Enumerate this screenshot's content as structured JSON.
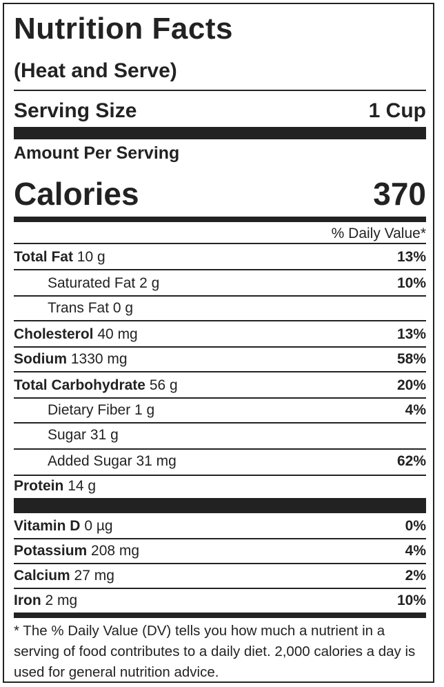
{
  "header": {
    "title": "Nutrition Facts",
    "subtitle": "(Heat and Serve)"
  },
  "serving": {
    "label": "Serving Size",
    "value": "1 Cup"
  },
  "amount_per_serving": "Amount Per Serving",
  "calories": {
    "label": "Calories",
    "value": "370"
  },
  "daily_value_header": "% Daily Value*",
  "nutrients": [
    {
      "name": "Total Fat",
      "amount": "10 g",
      "dv": "13%"
    },
    {
      "name": "Saturated Fat",
      "amount": "2 g",
      "dv": "10%"
    },
    {
      "name": "Trans Fat",
      "amount": "0 g",
      "dv": ""
    },
    {
      "name": "Cholesterol",
      "amount": "40 mg",
      "dv": "13%"
    },
    {
      "name": "Sodium",
      "amount": "1330 mg",
      "dv": "58%"
    },
    {
      "name": "Total Carbohydrate",
      "amount": "56 g",
      "dv": "20%"
    },
    {
      "name": "Dietary Fiber",
      "amount": "1 g",
      "dv": "4%"
    },
    {
      "name": "Sugar",
      "amount": "31 g",
      "dv": ""
    },
    {
      "name": "Added Sugar",
      "amount": "31 mg",
      "dv": "62%"
    },
    {
      "name": "Protein",
      "amount": "14 g",
      "dv": ""
    }
  ],
  "vitamins": [
    {
      "name": "Vitamin D",
      "amount": "0 µg",
      "dv": "0%"
    },
    {
      "name": "Potassium",
      "amount": "208 mg",
      "dv": "4%"
    },
    {
      "name": "Calcium",
      "amount": "27 mg",
      "dv": "2%"
    },
    {
      "name": "Iron",
      "amount": "2 mg",
      "dv": "10%"
    }
  ],
  "footnote": "* The % Daily Value (DV) tells you how much a nutrient in a serving of food contributes to a daily diet. 2,000 calories a day is used for general nutrition advice.",
  "colors": {
    "ink": "#222222",
    "background": "#ffffff"
  }
}
